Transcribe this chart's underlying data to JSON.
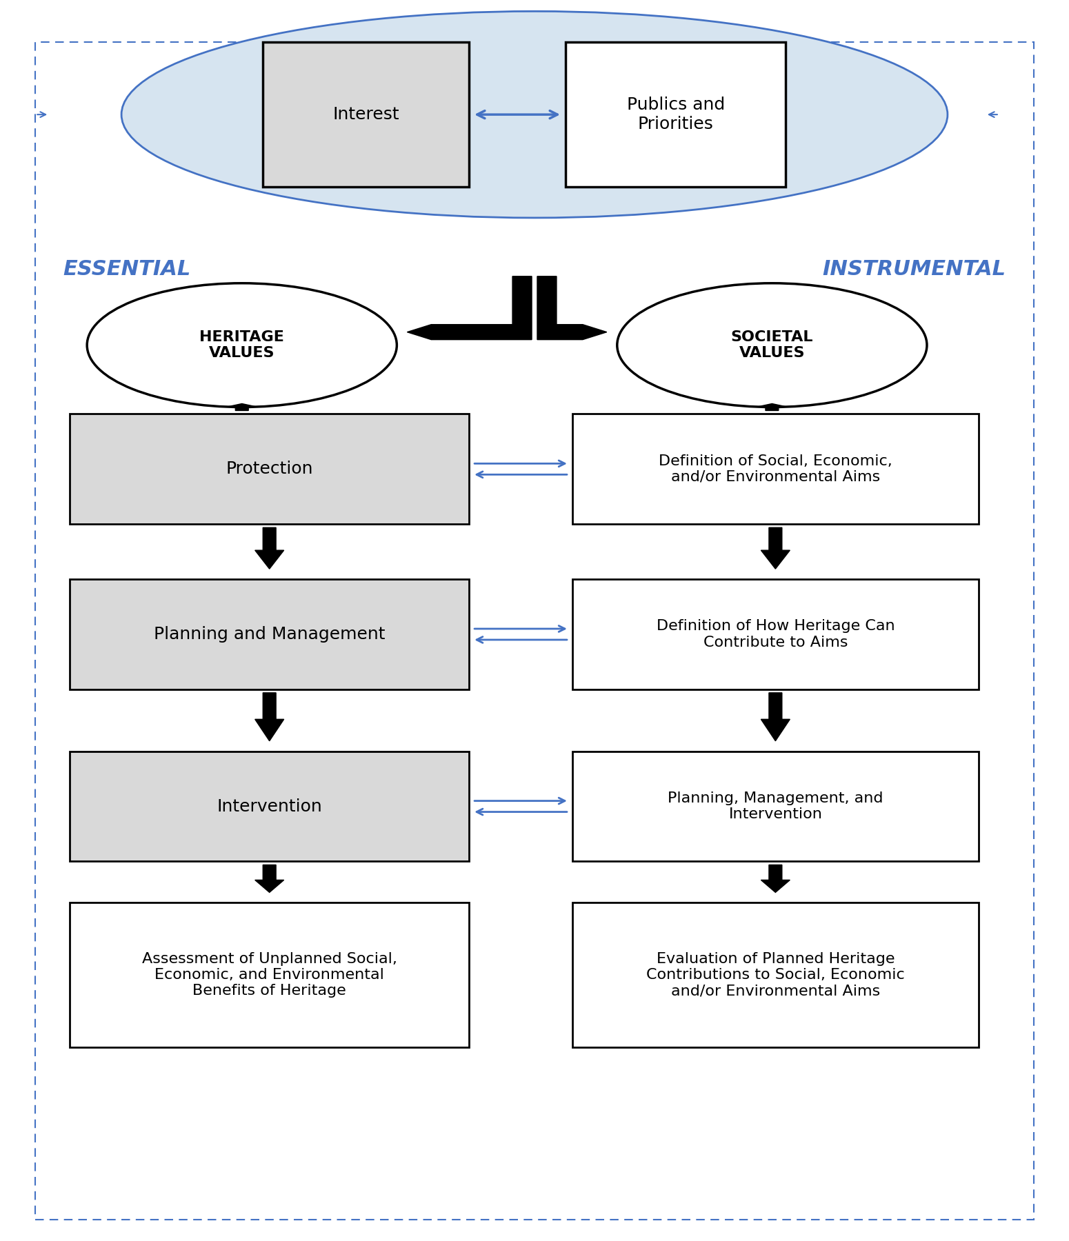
{
  "bg_color": "#ffffff",
  "blue_color": "#4472C4",
  "light_blue_ellipse": "#D6E4F0",
  "gray_box": "#D9D9D9",
  "black": "#000000",
  "white": "#ffffff",
  "essential_label": "ESSENTIAL",
  "instrumental_label": "INSTRUMENTAL",
  "interest_label": "Interest",
  "publics_label": "Publics and\nPriorities",
  "heritage_values_label": "HERITAGE\nVALUES",
  "societal_values_label": "SOCIETAL\nVALUES",
  "protection_label": "Protection",
  "planning_label": "Planning and Management",
  "intervention_label": "Intervention",
  "def_social_label": "Definition of Social, Economic,\nand/or Environmental Aims",
  "def_heritage_label": "Definition of How Heritage Can\nContribute to Aims",
  "plan_mgmt_label": "Planning, Management, and\nIntervention",
  "assessment_label": "Assessment of Unplanned Social,\nEconomic, and Environmental\nBenefits of Heritage",
  "evaluation_label": "Evaluation of Planned Heritage\nContributions to Social, Economic\nand/or Environmental Aims"
}
